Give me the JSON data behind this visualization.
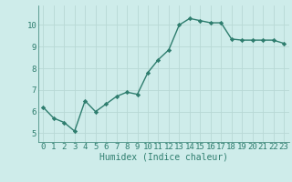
{
  "x": [
    0,
    1,
    2,
    3,
    4,
    5,
    6,
    7,
    8,
    9,
    10,
    11,
    12,
    13,
    14,
    15,
    16,
    17,
    18,
    19,
    20,
    21,
    22,
    23
  ],
  "y": [
    6.2,
    5.7,
    5.5,
    5.1,
    6.5,
    6.0,
    6.35,
    6.7,
    6.9,
    6.8,
    7.8,
    8.4,
    8.85,
    10.0,
    10.3,
    10.2,
    10.1,
    10.1,
    9.35,
    9.3,
    9.3,
    9.3,
    9.3,
    9.15
  ],
  "line_color": "#2e7d6e",
  "marker": "D",
  "marker_size": 2.2,
  "line_width": 1.0,
  "xlabel": "Humidex (Indice chaleur)",
  "xlabel_fontsize": 7,
  "xlim": [
    -0.5,
    23.5
  ],
  "ylim": [
    4.6,
    10.9
  ],
  "yticks": [
    5,
    6,
    7,
    8,
    9,
    10
  ],
  "xticks": [
    0,
    1,
    2,
    3,
    4,
    5,
    6,
    7,
    8,
    9,
    10,
    11,
    12,
    13,
    14,
    15,
    16,
    17,
    18,
    19,
    20,
    21,
    22,
    23
  ],
  "xtick_labels": [
    "0",
    "1",
    "2",
    "3",
    "4",
    "5",
    "6",
    "7",
    "8",
    "9",
    "10",
    "11",
    "12",
    "13",
    "14",
    "15",
    "16",
    "17",
    "18",
    "19",
    "20",
    "21",
    "22",
    "23"
  ],
  "bg_color": "#ceecea",
  "grid_color": "#b8d8d5",
  "tick_color": "#2e7d6e",
  "tick_fontsize": 6.5,
  "grid_linewidth": 0.6
}
